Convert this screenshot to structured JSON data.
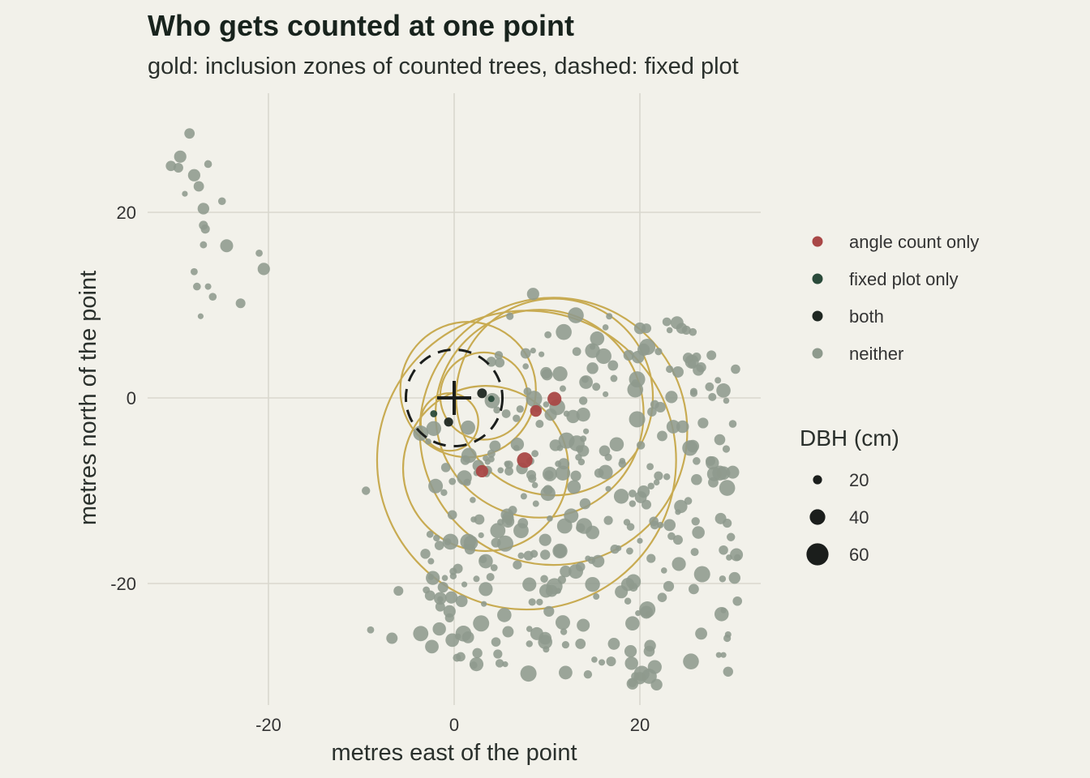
{
  "chart_data": {
    "type": "scatter",
    "title": "Who gets counted at one point",
    "subtitle": "gold: inclusion zones of counted trees, dashed: fixed plot",
    "xlabel": "metres east of the point",
    "ylabel": "metres north of the point",
    "xlim": [
      -33,
      33
    ],
    "ylim": [
      -33,
      33
    ],
    "x_ticks": [
      -20,
      0,
      20
    ],
    "y_ticks": [
      -20,
      0,
      20
    ],
    "x_tick_labels": [
      "-20",
      "0",
      "20"
    ],
    "y_tick_labels": [
      "-20",
      "0",
      "20"
    ],
    "grid": true,
    "legend_position": "right",
    "colors": {
      "background": "#f2f1ea",
      "grid": "#d9d8ce",
      "gold": "#c8ab52",
      "fixed_plot": "#1b1e1c",
      "cross": "#1b1e1c"
    },
    "sampling_point": [
      0,
      0
    ],
    "fixed_plot_radius": 5.2,
    "categories": [
      {
        "name": "angle count only",
        "color": "#a94746"
      },
      {
        "name": "fixed plot only",
        "color": "#2a4a3a"
      },
      {
        "name": "both",
        "color": "#1f2722"
      },
      {
        "name": "neither",
        "color": "#8e9a8d"
      }
    ],
    "size_legend": {
      "title": "DBH (cm)",
      "values": [
        20,
        40,
        60
      ],
      "labels": [
        "20",
        "40",
        "60"
      ]
    },
    "inclusion_zones": [
      {
        "cx": 1.5,
        "cy": 0.9,
        "r": 7.3
      },
      {
        "cx": 3.2,
        "cy": 0.2,
        "r": 4.7
      },
      {
        "cx": -0.5,
        "cy": -2.6,
        "r": 3.1
      },
      {
        "cx": 10.8,
        "cy": 0.1,
        "r": 10.6
      },
      {
        "cx": 7.8,
        "cy": -6.7,
        "r": 16.1
      },
      {
        "cx": 10.7,
        "cy": -3.6,
        "r": 14.4
      },
      {
        "cx": 9.2,
        "cy": -1.7,
        "r": 11.2
      },
      {
        "cx": 3.4,
        "cy": -7.6,
        "r": 8.9
      }
    ],
    "counted_trees": [
      {
        "x": 3.0,
        "y": 0.5,
        "dbh": 22,
        "category": "both"
      },
      {
        "x": -0.6,
        "y": -2.6,
        "dbh": 20,
        "category": "both"
      },
      {
        "x": -2.2,
        "y": -1.7,
        "dbh": 14,
        "category": "fixed plot only"
      },
      {
        "x": 4.0,
        "y": -0.1,
        "dbh": 12,
        "category": "fixed plot only"
      },
      {
        "x": 10.8,
        "y": -0.1,
        "dbh": 35,
        "category": "angle count only"
      },
      {
        "x": 8.8,
        "y": -1.4,
        "dbh": 28,
        "category": "angle count only"
      },
      {
        "x": 7.6,
        "y": -6.7,
        "dbh": 40,
        "category": "angle count only"
      },
      {
        "x": 3.0,
        "y": -7.9,
        "dbh": 30,
        "category": "angle count only"
      }
    ],
    "neither_cluster_nw": [
      [
        -28.5,
        28.5,
        24
      ],
      [
        -29.5,
        26,
        30
      ],
      [
        -30.5,
        25,
        24
      ],
      [
        -29.7,
        24.8,
        22
      ],
      [
        -28,
        24,
        30
      ],
      [
        -26.5,
        25.2,
        16
      ],
      [
        -27.5,
        22.8,
        24
      ],
      [
        -29,
        22,
        10
      ],
      [
        -27,
        20.4,
        28
      ],
      [
        -25,
        21.2,
        16
      ],
      [
        -27,
        18.6,
        20
      ],
      [
        -26.8,
        18.2,
        20
      ],
      [
        -27,
        16.5,
        14
      ],
      [
        -24.5,
        16.4,
        32
      ],
      [
        -21,
        15.6,
        14
      ],
      [
        -20.5,
        13.9,
        30
      ],
      [
        -28,
        13.6,
        14
      ],
      [
        -27.7,
        12,
        16
      ],
      [
        -26.5,
        12,
        12
      ],
      [
        -26,
        10.9,
        16
      ],
      [
        -23,
        10.2,
        22
      ],
      [
        -27.3,
        8.8,
        10
      ]
    ],
    "neither_main_seed": 42,
    "neither_extra": [
      [
        8.5,
        11.2,
        30
      ],
      [
        -9.5,
        -10,
        18
      ],
      [
        -9,
        -25,
        14
      ],
      [
        -0.5,
        -23,
        30
      ],
      [
        -1.5,
        -22.5,
        22
      ],
      [
        24.5,
        7.5,
        26
      ],
      [
        25,
        7.3,
        20
      ],
      [
        30,
        -2.8,
        16
      ],
      [
        30,
        -8,
        32
      ],
      [
        28,
        -8.2,
        36
      ],
      [
        29.5,
        -25.5,
        12
      ]
    ]
  }
}
